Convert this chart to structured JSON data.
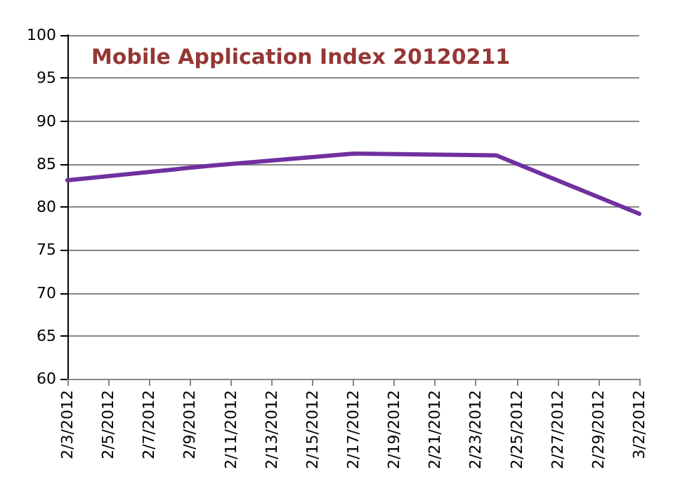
{
  "chart_data": {
    "type": "line",
    "title": "Mobile Application Index 20120211",
    "x": [
      "2012-02-03",
      "2012-02-10",
      "2012-02-17",
      "2012-02-24",
      "2012-03-02"
    ],
    "series": [
      {
        "color": "#7030a0",
        "values": [
          83.1,
          84.8,
          86.2,
          86.0,
          79.2
        ]
      }
    ],
    "xlim": [
      "2012-02-03",
      "2012-03-02"
    ],
    "xticks": [
      {
        "value": "2012-02-03",
        "label": "2/3/2012"
      },
      {
        "value": "2012-02-05",
        "label": "2/5/2012"
      },
      {
        "value": "2012-02-07",
        "label": "2/7/2012"
      },
      {
        "value": "2012-02-09",
        "label": "2/9/2012"
      },
      {
        "value": "2012-02-11",
        "label": "2/11/2012"
      },
      {
        "value": "2012-02-13",
        "label": "2/13/2012"
      },
      {
        "value": "2012-02-15",
        "label": "2/15/2012"
      },
      {
        "value": "2012-02-17",
        "label": "2/17/2012"
      },
      {
        "value": "2012-02-19",
        "label": "2/19/2012"
      },
      {
        "value": "2012-02-21",
        "label": "2/21/2012"
      },
      {
        "value": "2012-02-23",
        "label": "2/23/2012"
      },
      {
        "value": "2012-02-25",
        "label": "2/25/2012"
      },
      {
        "value": "2012-02-27",
        "label": "2/27/2012"
      },
      {
        "value": "2012-02-29",
        "label": "2/29/2012"
      },
      {
        "value": "2012-03-02",
        "label": "3/2/2012"
      }
    ],
    "ylim": [
      60,
      100
    ],
    "yticks": [
      60,
      65,
      70,
      75,
      80,
      85,
      90,
      95,
      100
    ],
    "grid": "y",
    "marker": "none",
    "line_style": "solid"
  }
}
